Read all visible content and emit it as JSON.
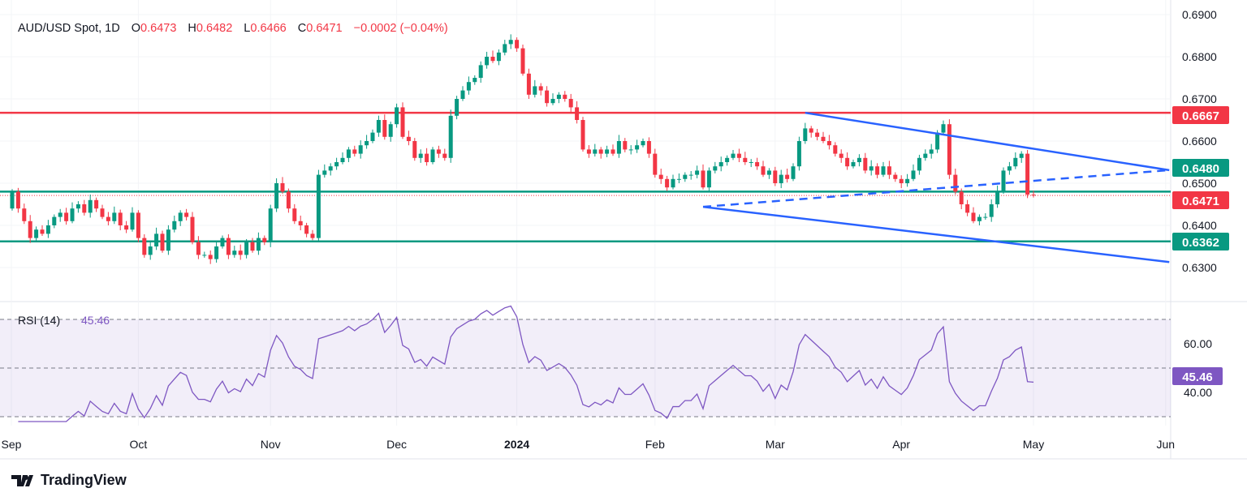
{
  "header": {
    "symbol": "AUD/USD Spot, 1D",
    "o_label": "O",
    "o": "0.6473",
    "h_label": "H",
    "h": "0.6482",
    "l_label": "L",
    "l": "0.6466",
    "c_label": "C",
    "c": "0.6471",
    "change": "−0.0002 (−0.04%)"
  },
  "brand": "TradingView",
  "colors": {
    "up": "#089981",
    "down": "#f23645",
    "trend": "#2962ff",
    "rsi": "#7e57c2",
    "resistance": "#f23645",
    "support": "#089981"
  },
  "chart_data": {
    "type": "candlestick",
    "title": "AUD/USD Spot, 1D",
    "ylim": [
      0.6255,
      0.6905
    ],
    "y_ticks": [
      "0.6300",
      "0.6400",
      "0.6500",
      "0.6600",
      "0.6700",
      "0.6800",
      "0.6900"
    ],
    "x_ticks": [
      {
        "label": "Sep",
        "index": -2
      },
      {
        "label": "Oct",
        "index": 21
      },
      {
        "label": "Nov",
        "index": 43
      },
      {
        "label": "Dec",
        "index": 64
      },
      {
        "label": "2024",
        "index": 84
      },
      {
        "label": "Feb",
        "index": 107
      },
      {
        "label": "Mar",
        "index": 127
      },
      {
        "label": "Apr",
        "index": 148
      },
      {
        "label": "May",
        "index": 170
      },
      {
        "label": "Jun",
        "index": 192
      }
    ],
    "start_open": 0.644,
    "closes": [
      0.648,
      0.644,
      0.641,
      0.637,
      0.639,
      0.638,
      0.64,
      0.642,
      0.643,
      0.641,
      0.644,
      0.645,
      0.643,
      0.646,
      0.644,
      0.642,
      0.641,
      0.643,
      0.64,
      0.639,
      0.643,
      0.637,
      0.633,
      0.635,
      0.638,
      0.634,
      0.639,
      0.641,
      0.643,
      0.642,
      0.636,
      0.633,
      0.633,
      0.632,
      0.635,
      0.637,
      0.633,
      0.634,
      0.633,
      0.636,
      0.634,
      0.637,
      0.636,
      0.644,
      0.65,
      0.648,
      0.644,
      0.641,
      0.64,
      0.638,
      0.637,
      0.652,
      0.653,
      0.654,
      0.655,
      0.656,
      0.658,
      0.657,
      0.659,
      0.66,
      0.662,
      0.665,
      0.661,
      0.664,
      0.668,
      0.661,
      0.66,
      0.656,
      0.657,
      0.655,
      0.658,
      0.657,
      0.656,
      0.666,
      0.67,
      0.672,
      0.674,
      0.675,
      0.678,
      0.68,
      0.679,
      0.681,
      0.683,
      0.684,
      0.682,
      0.676,
      0.671,
      0.673,
      0.672,
      0.669,
      0.67,
      0.671,
      0.67,
      0.668,
      0.665,
      0.658,
      0.657,
      0.658,
      0.657,
      0.658,
      0.657,
      0.66,
      0.658,
      0.658,
      0.659,
      0.66,
      0.657,
      0.652,
      0.651,
      0.649,
      0.651,
      0.651,
      0.652,
      0.652,
      0.653,
      0.649,
      0.653,
      0.654,
      0.655,
      0.656,
      0.657,
      0.656,
      0.655,
      0.655,
      0.654,
      0.652,
      0.653,
      0.65,
      0.652,
      0.651,
      0.654,
      0.66,
      0.663,
      0.662,
      0.661,
      0.66,
      0.659,
      0.657,
      0.656,
      0.654,
      0.655,
      0.656,
      0.653,
      0.654,
      0.652,
      0.654,
      0.652,
      0.651,
      0.65,
      0.651,
      0.653,
      0.656,
      0.657,
      0.658,
      0.662,
      0.664,
      0.652,
      0.648,
      0.645,
      0.643,
      0.641,
      0.642,
      0.642,
      0.645,
      0.648,
      0.653,
      0.654,
      0.656,
      0.657,
      0.6473,
      0.6471
    ],
    "last_bar": {
      "open": 0.6473,
      "high": 0.6482,
      "low": 0.6466,
      "close": 0.6471
    },
    "levels": [
      {
        "value": 0.6667,
        "label": "0.6667",
        "color": "#f23645"
      },
      {
        "value": 0.648,
        "label": "0.6480",
        "color": "#089981"
      },
      {
        "value": 0.6362,
        "label": "0.6362",
        "color": "#089981"
      }
    ],
    "last_price": {
      "value": 0.6471,
      "label": "0.6471"
    },
    "trendlines": [
      {
        "name": "upper-channel",
        "from": [
          132,
          0.6667
        ],
        "to": [
          192.6,
          0.6531
        ],
        "dashed": false
      },
      {
        "name": "lower-channel",
        "from": [
          115,
          0.6444
        ],
        "to": [
          192.6,
          0.6313
        ],
        "dashed": false
      },
      {
        "name": "mid-dashed",
        "from": [
          115,
          0.6444
        ],
        "to": [
          192.6,
          0.6531
        ],
        "dashed": true
      }
    ],
    "rsi": {
      "label": "RSI (14)",
      "value": "45.46",
      "period": 14,
      "ylim": [
        25,
        78
      ],
      "bands": [
        30,
        50,
        70
      ],
      "y_ticks": [
        "40.00",
        "60.00"
      ]
    }
  }
}
